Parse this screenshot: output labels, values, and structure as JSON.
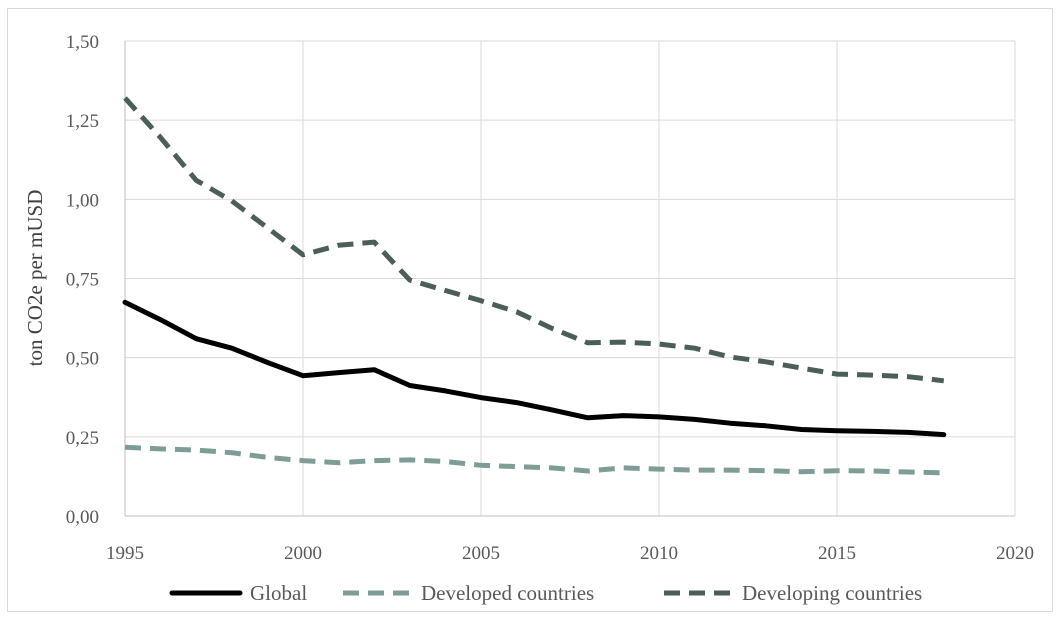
{
  "chart_data": {
    "type": "line",
    "title": "",
    "xlabel": "",
    "ylabel": "ton CO2e per mUSD",
    "xlim": [
      1995,
      2020
    ],
    "ylim": [
      0,
      1.5
    ],
    "x_ticks": [
      "1995",
      "2000",
      "2005",
      "2010",
      "2015",
      "2020"
    ],
    "x_tick_values": [
      1995,
      2000,
      2005,
      2010,
      2015,
      2020
    ],
    "y_ticks": [
      "0,00",
      "0,25",
      "0,50",
      "0,75",
      "1,00",
      "1,25",
      "1,50"
    ],
    "y_tick_values": [
      0,
      0.25,
      0.5,
      0.75,
      1.0,
      1.25,
      1.5
    ],
    "grid": "vertical and horizontal",
    "legend_position": "bottom",
    "x": [
      1995,
      1996,
      1997,
      1998,
      1999,
      2000,
      2001,
      2002,
      2003,
      2004,
      2005,
      2006,
      2007,
      2008,
      2009,
      2010,
      2011,
      2012,
      2013,
      2014,
      2015,
      2016,
      2017,
      2018
    ],
    "series": [
      {
        "name": "Global",
        "color": "#000000",
        "style": "solid",
        "values": [
          0.675,
          0.62,
          0.56,
          0.53,
          0.485,
          0.443,
          0.453,
          0.462,
          0.412,
          0.395,
          0.374,
          0.358,
          0.335,
          0.31,
          0.317,
          0.313,
          0.305,
          0.293,
          0.285,
          0.273,
          0.269,
          0.267,
          0.264,
          0.257
        ]
      },
      {
        "name": "Developed countries",
        "color": "#7f9d98",
        "style": "dashed",
        "values": [
          0.217,
          0.212,
          0.208,
          0.2,
          0.185,
          0.175,
          0.168,
          0.175,
          0.177,
          0.172,
          0.16,
          0.156,
          0.152,
          0.142,
          0.152,
          0.148,
          0.145,
          0.145,
          0.143,
          0.14,
          0.143,
          0.142,
          0.139,
          0.136
        ]
      },
      {
        "name": "Developing countries",
        "color": "#4b5e58",
        "style": "dashed",
        "values": [
          1.32,
          1.195,
          1.06,
          0.995,
          0.91,
          0.825,
          0.855,
          0.865,
          0.745,
          0.712,
          0.68,
          0.645,
          0.592,
          0.547,
          0.549,
          0.543,
          0.53,
          0.502,
          0.487,
          0.467,
          0.448,
          0.445,
          0.44,
          0.427
        ]
      }
    ]
  }
}
